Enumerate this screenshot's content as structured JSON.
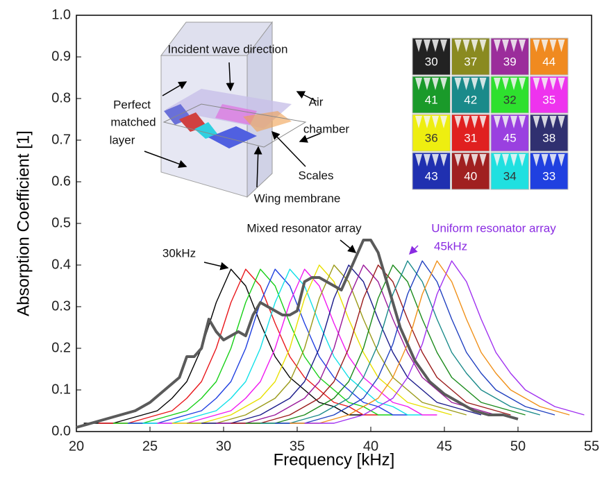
{
  "chart_data": {
    "type": "line",
    "x_label": "Frequency [kHz]",
    "y_label": "Absorption Coefficient [1]",
    "xlim": [
      20,
      55
    ],
    "xticks": [
      20,
      25,
      30,
      35,
      40,
      45,
      50,
      55
    ],
    "ylim": [
      0,
      1
    ],
    "yticks": [
      {
        "value": 0,
        "label": "0.0"
      },
      0.1,
      0.2,
      0.3,
      0.4,
      0.5,
      0.6,
      0.7,
      0.8,
      0.9,
      {
        "value": 1,
        "label": "1.0"
      }
    ],
    "series": [
      {
        "color": "#000000",
        "x": [
          20.5,
          21.5,
          22.5,
          23.5,
          24.5,
          25.5,
          26.5,
          27.5,
          28.5,
          29.5,
          30.5,
          31.5,
          32.5,
          33.5,
          34.5,
          35.5,
          36.5,
          37.5,
          38.5,
          39.5
        ],
        "values": [
          0.02,
          0.02,
          0.02,
          0.03,
          0.04,
          0.05,
          0.08,
          0.12,
          0.2,
          0.31,
          0.39,
          0.35,
          0.26,
          0.18,
          0.13,
          0.1,
          0.07,
          0.06,
          0.04,
          0.04
        ]
      },
      {
        "color": "#e8161a",
        "x": [
          21.5,
          22.5,
          23.5,
          24.5,
          25.5,
          26.5,
          27.5,
          28.5,
          29.5,
          30.5,
          31.5,
          32.5,
          33.5,
          34.5,
          35.5,
          36.5,
          37.5,
          38.5,
          39.5,
          40.5
        ],
        "values": [
          0.02,
          0.02,
          0.02,
          0.03,
          0.04,
          0.05,
          0.08,
          0.12,
          0.2,
          0.31,
          0.39,
          0.35,
          0.26,
          0.18,
          0.13,
          0.1,
          0.07,
          0.06,
          0.04,
          0.04
        ]
      },
      {
        "color": "#17d017",
        "x": [
          22.5,
          23.5,
          24.5,
          25.5,
          26.5,
          27.5,
          28.5,
          29.5,
          30.5,
          31.5,
          32.5,
          33.5,
          34.5,
          35.5,
          36.5,
          37.5,
          38.5,
          39.5,
          40.5,
          41.5
        ],
        "values": [
          0.02,
          0.02,
          0.02,
          0.03,
          0.04,
          0.05,
          0.08,
          0.12,
          0.2,
          0.31,
          0.39,
          0.35,
          0.26,
          0.18,
          0.13,
          0.1,
          0.07,
          0.06,
          0.04,
          0.04
        ]
      },
      {
        "color": "#1f3fe0",
        "x": [
          23.5,
          24.5,
          25.5,
          26.5,
          27.5,
          28.5,
          29.5,
          30.5,
          31.5,
          32.5,
          33.5,
          34.5,
          35.5,
          36.5,
          37.5,
          38.5,
          39.5,
          40.5,
          41.5,
          42.5
        ],
        "values": [
          0.02,
          0.02,
          0.02,
          0.03,
          0.04,
          0.05,
          0.08,
          0.12,
          0.2,
          0.31,
          0.39,
          0.35,
          0.26,
          0.18,
          0.13,
          0.1,
          0.07,
          0.06,
          0.04,
          0.04
        ]
      },
      {
        "color": "#10e0e8",
        "x": [
          24.5,
          25.5,
          26.5,
          27.5,
          28.5,
          29.5,
          30.5,
          31.5,
          32.5,
          33.5,
          34.5,
          35.5,
          36.5,
          37.5,
          38.5,
          39.5,
          40.5,
          41.5,
          42.5,
          43.5
        ],
        "values": [
          0.02,
          0.02,
          0.02,
          0.03,
          0.04,
          0.05,
          0.08,
          0.12,
          0.2,
          0.31,
          0.39,
          0.35,
          0.26,
          0.18,
          0.13,
          0.1,
          0.07,
          0.06,
          0.04,
          0.04
        ]
      },
      {
        "color": "#f018f0",
        "x": [
          25.5,
          26.5,
          27.5,
          28.5,
          29.5,
          30.5,
          31.5,
          32.5,
          33.5,
          34.5,
          35.5,
          36.5,
          37.5,
          38.5,
          39.5,
          40.5,
          41.5,
          42.5,
          43.5,
          44.5
        ],
        "values": [
          0.02,
          0.02,
          0.02,
          0.03,
          0.04,
          0.05,
          0.08,
          0.12,
          0.2,
          0.31,
          0.39,
          0.35,
          0.26,
          0.18,
          0.13,
          0.1,
          0.07,
          0.06,
          0.04,
          0.04
        ]
      },
      {
        "color": "#e8e000",
        "x": [
          26.5,
          27.5,
          28.5,
          29.5,
          30.5,
          31.5,
          32.5,
          33.5,
          34.5,
          35.5,
          36.5,
          37.5,
          38.5,
          39.5,
          40.5,
          41.5,
          42.5,
          43.5,
          44.5,
          45.5
        ],
        "values": [
          0.02,
          0.02,
          0.02,
          0.03,
          0.04,
          0.06,
          0.08,
          0.12,
          0.2,
          0.32,
          0.4,
          0.36,
          0.27,
          0.19,
          0.13,
          0.1,
          0.07,
          0.06,
          0.05,
          0.04
        ]
      },
      {
        "color": "#9a9a18",
        "x": [
          27.5,
          28.5,
          29.5,
          30.5,
          31.5,
          32.5,
          33.5,
          34.5,
          35.5,
          36.5,
          37.5,
          38.5,
          39.5,
          40.5,
          41.5,
          42.5,
          43.5,
          44.5,
          45.5,
          46.5
        ],
        "values": [
          0.02,
          0.02,
          0.02,
          0.03,
          0.04,
          0.06,
          0.08,
          0.12,
          0.2,
          0.32,
          0.4,
          0.36,
          0.27,
          0.19,
          0.13,
          0.1,
          0.07,
          0.06,
          0.05,
          0.04
        ]
      },
      {
        "color": "#1a1a8a",
        "x": [
          28.5,
          29.5,
          30.5,
          31.5,
          32.5,
          33.5,
          34.5,
          35.5,
          36.5,
          37.5,
          38.5,
          39.5,
          40.5,
          41.5,
          42.5,
          43.5,
          44.5,
          45.5,
          46.5,
          47.5
        ],
        "values": [
          0.02,
          0.02,
          0.02,
          0.03,
          0.04,
          0.06,
          0.08,
          0.12,
          0.2,
          0.32,
          0.4,
          0.36,
          0.27,
          0.19,
          0.13,
          0.1,
          0.07,
          0.06,
          0.05,
          0.04
        ]
      },
      {
        "color": "#9a189a",
        "x": [
          29.5,
          30.5,
          31.5,
          32.5,
          33.5,
          34.5,
          35.5,
          36.5,
          37.5,
          38.5,
          39.5,
          40.5,
          41.5,
          42.5,
          43.5,
          44.5,
          45.5,
          46.5,
          47.5,
          48.5
        ],
        "values": [
          0.02,
          0.02,
          0.02,
          0.03,
          0.04,
          0.06,
          0.08,
          0.12,
          0.2,
          0.32,
          0.4,
          0.36,
          0.27,
          0.19,
          0.13,
          0.1,
          0.07,
          0.06,
          0.05,
          0.04
        ]
      },
      {
        "color": "#9a1a1a",
        "x": [
          30.5,
          31.5,
          32.5,
          33.5,
          34.5,
          35.5,
          36.5,
          37.5,
          38.5,
          39.5,
          40.5,
          41.5,
          42.5,
          43.5,
          44.5,
          45.5,
          46.5,
          47.5,
          48.5,
          49.5
        ],
        "values": [
          0.02,
          0.02,
          0.02,
          0.03,
          0.04,
          0.06,
          0.08,
          0.12,
          0.2,
          0.32,
          0.4,
          0.36,
          0.27,
          0.19,
          0.13,
          0.1,
          0.07,
          0.06,
          0.05,
          0.04
        ]
      },
      {
        "color": "#1a8a1a",
        "x": [
          31.5,
          32.5,
          33.5,
          34.5,
          35.5,
          36.5,
          37.5,
          38.5,
          39.5,
          40.5,
          41.5,
          42.5,
          43.5,
          44.5,
          45.5,
          46.5,
          47.5,
          48.5,
          49.5,
          50.5
        ],
        "values": [
          0.02,
          0.02,
          0.02,
          0.03,
          0.04,
          0.06,
          0.08,
          0.12,
          0.2,
          0.32,
          0.4,
          0.36,
          0.27,
          0.19,
          0.13,
          0.1,
          0.07,
          0.06,
          0.05,
          0.04
        ]
      },
      {
        "color": "#1a8a8a",
        "x": [
          32.5,
          33.5,
          34.5,
          35.5,
          36.5,
          37.5,
          38.5,
          39.5,
          40.5,
          41.5,
          42.5,
          43.5,
          44.5,
          45.5,
          46.5,
          47.5,
          48.5,
          49.5,
          50.5,
          51.5
        ],
        "values": [
          0.02,
          0.02,
          0.02,
          0.03,
          0.04,
          0.06,
          0.08,
          0.13,
          0.21,
          0.33,
          0.41,
          0.36,
          0.27,
          0.19,
          0.14,
          0.1,
          0.08,
          0.06,
          0.05,
          0.04
        ]
      },
      {
        "color": "#2040c0",
        "x": [
          33.5,
          34.5,
          35.5,
          36.5,
          37.5,
          38.5,
          39.5,
          40.5,
          41.5,
          42.5,
          43.5,
          44.5,
          45.5,
          46.5,
          47.5,
          48.5,
          49.5,
          50.5,
          51.5,
          52.5
        ],
        "values": [
          0.02,
          0.02,
          0.02,
          0.03,
          0.04,
          0.06,
          0.08,
          0.13,
          0.21,
          0.33,
          0.41,
          0.36,
          0.27,
          0.19,
          0.14,
          0.1,
          0.08,
          0.06,
          0.05,
          0.04
        ]
      },
      {
        "color": "#f09018",
        "x": [
          34.5,
          35.5,
          36.5,
          37.5,
          38.5,
          39.5,
          40.5,
          41.5,
          42.5,
          43.5,
          44.5,
          45.5,
          46.5,
          47.5,
          48.5,
          49.5,
          50.5,
          51.5,
          52.5,
          53.5
        ],
        "values": [
          0.02,
          0.02,
          0.02,
          0.03,
          0.04,
          0.06,
          0.08,
          0.13,
          0.21,
          0.33,
          0.41,
          0.36,
          0.27,
          0.19,
          0.14,
          0.1,
          0.08,
          0.06,
          0.05,
          0.04
        ]
      },
      {
        "color": "#a030f0",
        "x": [
          35.5,
          36.5,
          37.5,
          38.5,
          39.5,
          40.5,
          41.5,
          42.5,
          43.5,
          44.5,
          45.5,
          46.5,
          47.5,
          48.5,
          49.5,
          50.5,
          51.5,
          52.5,
          53.5,
          54.5
        ],
        "values": [
          0.02,
          0.02,
          0.02,
          0.03,
          0.04,
          0.06,
          0.08,
          0.13,
          0.21,
          0.33,
          0.41,
          0.36,
          0.27,
          0.19,
          0.14,
          0.1,
          0.08,
          0.06,
          0.05,
          0.04
        ]
      },
      {
        "color": "#5a5a5a",
        "width": 4,
        "x": [
          20,
          21,
          22,
          23,
          24,
          25,
          26,
          27,
          27.5,
          28,
          28.5,
          29,
          29.5,
          30,
          30.5,
          31,
          31.5,
          32,
          32.5,
          33,
          33.5,
          34,
          34.5,
          35,
          35.5,
          36,
          36.5,
          37,
          37.5,
          38,
          38.5,
          39,
          39.5,
          40,
          40.5,
          41,
          41.5,
          42,
          43,
          44,
          45,
          46,
          47,
          48,
          49,
          50
        ],
        "values": [
          0.01,
          0.02,
          0.03,
          0.04,
          0.05,
          0.07,
          0.1,
          0.13,
          0.18,
          0.18,
          0.2,
          0.27,
          0.24,
          0.22,
          0.23,
          0.24,
          0.23,
          0.28,
          0.31,
          0.3,
          0.29,
          0.28,
          0.28,
          0.29,
          0.36,
          0.37,
          0.37,
          0.36,
          0.35,
          0.34,
          0.38,
          0.42,
          0.46,
          0.46,
          0.43,
          0.37,
          0.31,
          0.25,
          0.17,
          0.12,
          0.09,
          0.07,
          0.05,
          0.04,
          0.04,
          0.03
        ]
      }
    ],
    "annotations": {
      "peak_30": "30kHz",
      "mixed": "Mixed resonator array",
      "uniform": "Uniform resonator array",
      "peak_45": "45kHz",
      "uniform_color": "#8a2be2"
    },
    "inset_labels": {
      "incident": "Incident wave direction",
      "pml": [
        "Perfect",
        "matched",
        "layer"
      ],
      "air": [
        "Air",
        "chamber"
      ],
      "scales": "Scales",
      "membrane": "Wing membrane"
    },
    "inset_grid": [
      [
        {
          "label": 30,
          "color": "#222222"
        },
        {
          "label": 37,
          "color": "#8a8a20"
        },
        {
          "label": 39,
          "color": "#9b2d9b"
        },
        {
          "label": 44,
          "color": "#f08a20"
        }
      ],
      [
        {
          "label": 41,
          "color": "#1a9a2a"
        },
        {
          "label": 42,
          "color": "#1a8a8a"
        },
        {
          "label": 32,
          "color": "#2ee02e"
        },
        {
          "label": 35,
          "color": "#ee33ee"
        }
      ],
      [
        {
          "label": 36,
          "color": "#eeee10"
        },
        {
          "label": 31,
          "color": "#e02020"
        },
        {
          "label": 45,
          "color": "#9a40e0"
        },
        {
          "label": 38,
          "color": "#303070"
        }
      ],
      [
        {
          "label": 43,
          "color": "#2030b0"
        },
        {
          "label": 40,
          "color": "#a02020"
        },
        {
          "label": 34,
          "color": "#20e0e0"
        },
        {
          "label": 33,
          "color": "#2040e0"
        }
      ]
    ]
  }
}
